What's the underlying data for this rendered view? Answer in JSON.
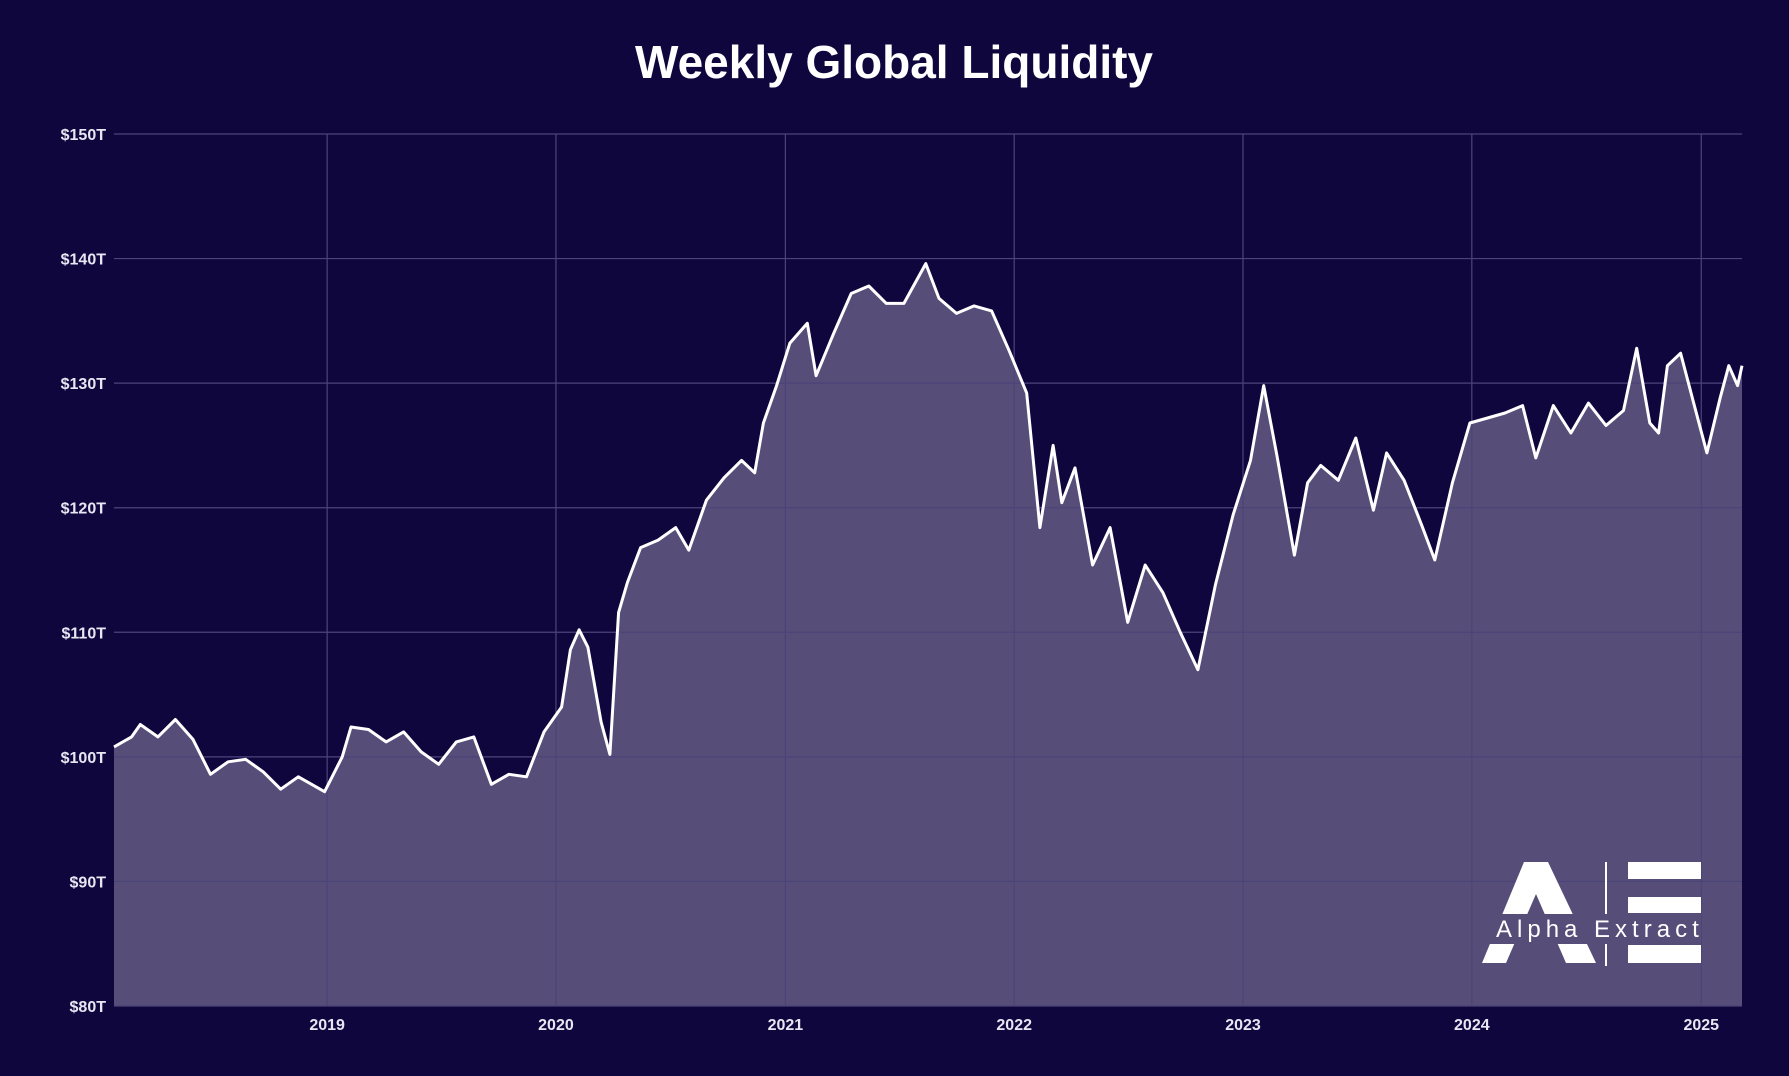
{
  "chart_data": {
    "type": "area",
    "title": "Weekly Global Liquidity",
    "xlabel": "",
    "ylabel": "",
    "y_unit": "$T",
    "ylim": [
      80,
      150
    ],
    "y_ticks": [
      80,
      90,
      100,
      110,
      120,
      130,
      140,
      150
    ],
    "y_tick_labels": [
      "$80T",
      "$90T",
      "$100T",
      "$110T",
      "$120T",
      "$130T",
      "$140T",
      "$150T"
    ],
    "xlim": [
      "2018-01-26",
      "2025-03-07"
    ],
    "x_ticks": [
      "2019-01-01",
      "2020-01-01",
      "2021-01-01",
      "2022-01-01",
      "2023-01-01",
      "2024-01-01",
      "2025-01-01"
    ],
    "x_tick_labels": [
      "2019",
      "2020",
      "2021",
      "2022",
      "2023",
      "2024",
      "2025"
    ],
    "grid": true,
    "legend": "none",
    "colors": {
      "background": "#10063e",
      "area_fill": "#564d79",
      "line": "#ffffff",
      "grid": "#4b4479"
    },
    "series": [
      {
        "points": [
          [
            "2018-01-26",
            100.8
          ],
          [
            "2018-02-23",
            101.6
          ],
          [
            "2018-03-09",
            102.6
          ],
          [
            "2018-04-06",
            101.6
          ],
          [
            "2018-05-04",
            103.0
          ],
          [
            "2018-06-01",
            101.4
          ],
          [
            "2018-06-29",
            98.6
          ],
          [
            "2018-07-27",
            99.6
          ],
          [
            "2018-08-24",
            99.8
          ],
          [
            "2018-09-21",
            98.8
          ],
          [
            "2018-10-19",
            97.4
          ],
          [
            "2018-11-16",
            98.4
          ],
          [
            "2018-12-28",
            97.2
          ],
          [
            "2019-01-25",
            100.0
          ],
          [
            "2019-02-08",
            102.4
          ],
          [
            "2019-03-08",
            102.2
          ],
          [
            "2019-04-05",
            101.2
          ],
          [
            "2019-05-03",
            102.0
          ],
          [
            "2019-05-31",
            100.4
          ],
          [
            "2019-06-28",
            99.4
          ],
          [
            "2019-07-26",
            101.2
          ],
          [
            "2019-08-23",
            101.6
          ],
          [
            "2019-09-20",
            97.8
          ],
          [
            "2019-10-18",
            98.6
          ],
          [
            "2019-11-15",
            98.4
          ],
          [
            "2019-12-13",
            102.0
          ],
          [
            "2020-01-10",
            104.0
          ],
          [
            "2020-01-24",
            108.6
          ],
          [
            "2020-02-07",
            110.2
          ],
          [
            "2020-02-21",
            108.8
          ],
          [
            "2020-03-13",
            102.8
          ],
          [
            "2020-03-27",
            100.2
          ],
          [
            "2020-04-10",
            111.6
          ],
          [
            "2020-04-24",
            114.0
          ],
          [
            "2020-05-15",
            116.8
          ],
          [
            "2020-06-12",
            117.4
          ],
          [
            "2020-07-10",
            118.4
          ],
          [
            "2020-07-31",
            116.6
          ],
          [
            "2020-08-28",
            120.6
          ],
          [
            "2020-09-25",
            122.4
          ],
          [
            "2020-10-23",
            123.8
          ],
          [
            "2020-11-13",
            122.8
          ],
          [
            "2020-11-27",
            126.8
          ],
          [
            "2020-12-18",
            129.8
          ],
          [
            "2021-01-08",
            133.2
          ],
          [
            "2021-02-05",
            134.8
          ],
          [
            "2021-02-19",
            130.6
          ],
          [
            "2021-03-19",
            134.0
          ],
          [
            "2021-04-16",
            137.2
          ],
          [
            "2021-05-14",
            137.8
          ],
          [
            "2021-06-11",
            136.4
          ],
          [
            "2021-07-09",
            136.4
          ],
          [
            "2021-08-13",
            139.6
          ],
          [
            "2021-09-03",
            136.8
          ],
          [
            "2021-10-01",
            135.6
          ],
          [
            "2021-10-29",
            136.2
          ],
          [
            "2021-11-26",
            135.8
          ],
          [
            "2021-12-24",
            132.6
          ],
          [
            "2022-01-21",
            129.2
          ],
          [
            "2022-02-11",
            118.4
          ],
          [
            "2022-03-04",
            125.0
          ],
          [
            "2022-03-18",
            120.4
          ],
          [
            "2022-04-08",
            123.2
          ],
          [
            "2022-05-06",
            115.4
          ],
          [
            "2022-06-03",
            118.4
          ],
          [
            "2022-07-01",
            110.8
          ],
          [
            "2022-07-29",
            115.4
          ],
          [
            "2022-08-26",
            113.2
          ],
          [
            "2022-09-23",
            110.0
          ],
          [
            "2022-10-21",
            107.0
          ],
          [
            "2022-11-18",
            113.8
          ],
          [
            "2022-12-16",
            119.4
          ],
          [
            "2023-01-13",
            123.8
          ],
          [
            "2023-02-03",
            129.8
          ],
          [
            "2023-02-24",
            124.2
          ],
          [
            "2023-03-24",
            116.2
          ],
          [
            "2023-04-14",
            122.0
          ],
          [
            "2023-05-05",
            123.4
          ],
          [
            "2023-06-02",
            122.2
          ],
          [
            "2023-06-30",
            125.6
          ],
          [
            "2023-07-28",
            119.8
          ],
          [
            "2023-08-18",
            124.4
          ],
          [
            "2023-09-15",
            122.2
          ],
          [
            "2023-10-13",
            118.6
          ],
          [
            "2023-11-03",
            115.8
          ],
          [
            "2023-12-01",
            122.0
          ],
          [
            "2023-12-29",
            126.8
          ],
          [
            "2024-01-26",
            127.2
          ],
          [
            "2024-02-23",
            127.6
          ],
          [
            "2024-03-22",
            128.2
          ],
          [
            "2024-04-12",
            124.0
          ],
          [
            "2024-05-10",
            128.2
          ],
          [
            "2024-06-07",
            126.0
          ],
          [
            "2024-07-05",
            128.4
          ],
          [
            "2024-08-02",
            126.6
          ],
          [
            "2024-08-30",
            127.8
          ],
          [
            "2024-09-20",
            132.8
          ],
          [
            "2024-10-11",
            126.8
          ],
          [
            "2024-10-25",
            126.0
          ],
          [
            "2024-11-08",
            131.4
          ],
          [
            "2024-11-29",
            132.4
          ],
          [
            "2024-12-20",
            128.4
          ],
          [
            "2025-01-10",
            124.4
          ],
          [
            "2025-01-31",
            128.8
          ],
          [
            "2025-02-14",
            131.4
          ],
          [
            "2025-02-28",
            129.8
          ],
          [
            "2025-03-07",
            131.4
          ]
        ]
      }
    ]
  },
  "watermark": {
    "text": "Alpha Extract",
    "letters": "A|E"
  }
}
